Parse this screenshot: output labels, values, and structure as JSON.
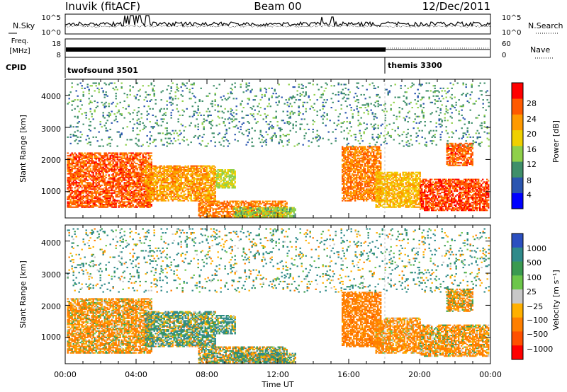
{
  "header": {
    "station": "Inuvik (fitACF)",
    "beam": "Beam 00",
    "date": "12/Dec/2011"
  },
  "noise_panel": {
    "left_label": "N.Sky",
    "right_label": "N.Search",
    "left_ticks": [
      "10^5",
      "10^0"
    ],
    "right_ticks": [
      "10^5",
      "10^0"
    ]
  },
  "freq_panel": {
    "left_label_line1": "Freq.",
    "left_label_line2": "[MHz]",
    "right_label": "Nave",
    "left_ticks": [
      "18",
      "8"
    ],
    "right_ticks": [
      "60",
      "0"
    ]
  },
  "cpid": {
    "label": "CPID",
    "modes": [
      {
        "name": "twofsound 3501",
        "start_hour": 0
      },
      {
        "name": "themis 3300",
        "start_hour": 18
      }
    ]
  },
  "x_axis": {
    "label": "Time UT",
    "ticks": [
      "00:00",
      "04:00",
      "08:00",
      "12:00",
      "16:00",
      "20:00",
      "00:00"
    ]
  },
  "power_panel": {
    "ylabel": "Slant Range [km]",
    "yticks": [
      "1000",
      "2000",
      "3000",
      "4000"
    ],
    "colorbar_label": "Power [dB]",
    "colorbar_ticks": [
      "4",
      "8",
      "12",
      "16",
      "20",
      "24",
      "28"
    ],
    "colors": [
      "#0000ff",
      "#2a55b0",
      "#3f8f6a",
      "#8fd04a",
      "#f0d000",
      "#ff9a00",
      "#ff5a00",
      "#ff0000"
    ]
  },
  "velocity_panel": {
    "ylabel": "Slant Range [km]",
    "yticks": [
      "1000",
      "2000",
      "3000",
      "4000"
    ],
    "colorbar_label": "Velocity [m s⁻¹]",
    "colorbar_ticks": [
      "1000",
      "500",
      "100",
      "25",
      "−25",
      "−100",
      "−500",
      "−1000"
    ],
    "colors": [
      "#2b4fc0",
      "#2f8a8a",
      "#3a9a50",
      "#6cc64a",
      "#c8c8c8",
      "#ffb000",
      "#ff7f00",
      "#ff5000",
      "#ff0000"
    ]
  },
  "chart_data": [
    {
      "type": "heatmap",
      "title": "Power",
      "xlabel": "Time UT",
      "ylabel": "Slant Range [km]",
      "xlim": [
        0,
        24
      ],
      "ylim": [
        180,
        4500
      ],
      "clim": [
        0,
        32
      ],
      "regions": [
        {
          "t": [
            0.1,
            4.9
          ],
          "r": [
            500,
            2200
          ],
          "level": 26
        },
        {
          "t": [
            4.5,
            8.5
          ],
          "r": [
            700,
            1800
          ],
          "level": 22
        },
        {
          "t": [
            8.5,
            9.6
          ],
          "r": [
            1100,
            1700
          ],
          "level": 16
        },
        {
          "t": [
            7.5,
            12.5
          ],
          "r": [
            200,
            700
          ],
          "level": 24
        },
        {
          "t": [
            9.5,
            13.0
          ],
          "r": [
            200,
            500
          ],
          "level": 14
        },
        {
          "t": [
            15.6,
            17.8
          ],
          "r": [
            700,
            2400
          ],
          "level": 24
        },
        {
          "t": [
            17.5,
            20.0
          ],
          "r": [
            500,
            1600
          ],
          "level": 20
        },
        {
          "t": [
            20.0,
            23.9
          ],
          "r": [
            400,
            1400
          ],
          "level": 27
        },
        {
          "t": [
            21.5,
            23.0
          ],
          "r": [
            1800,
            2500
          ],
          "level": 26
        },
        {
          "t": [
            0.1,
            23.9
          ],
          "r": [
            2400,
            4400
          ],
          "level": 10
        }
      ]
    },
    {
      "type": "heatmap",
      "title": "Velocity",
      "xlabel": "Time UT",
      "ylabel": "Slant Range [km]",
      "xlim": [
        0,
        24
      ],
      "ylim": [
        180,
        4500
      ],
      "clim": [
        -1000,
        1000
      ],
      "regions": [
        {
          "t": [
            0.1,
            4.9
          ],
          "r": [
            500,
            2200
          ],
          "level": -150
        },
        {
          "t": [
            4.5,
            8.5
          ],
          "r": [
            700,
            1800
          ],
          "level": 80
        },
        {
          "t": [
            8.5,
            9.6
          ],
          "r": [
            1100,
            1700
          ],
          "level": 120
        },
        {
          "t": [
            7.5,
            12.5
          ],
          "r": [
            200,
            700
          ],
          "level": 0
        },
        {
          "t": [
            9.5,
            13.0
          ],
          "r": [
            200,
            500
          ],
          "level": 60
        },
        {
          "t": [
            15.6,
            17.8
          ],
          "r": [
            700,
            2400
          ],
          "level": -300
        },
        {
          "t": [
            17.5,
            20.0
          ],
          "r": [
            500,
            1600
          ],
          "level": -200
        },
        {
          "t": [
            20.0,
            23.9
          ],
          "r": [
            400,
            1400
          ],
          "level": -150
        },
        {
          "t": [
            21.5,
            23.0
          ],
          "r": [
            1800,
            2500
          ],
          "level": -120
        },
        {
          "t": [
            0.1,
            23.9
          ],
          "r": [
            2400,
            4400
          ],
          "level": 80
        }
      ]
    }
  ]
}
